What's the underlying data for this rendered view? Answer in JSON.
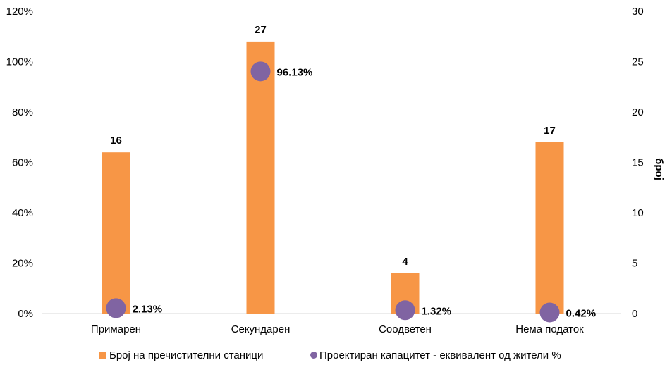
{
  "chart_data": {
    "type": "bar",
    "categories": [
      "Примарен",
      "Секундарен",
      "Соодветен",
      "Нема податок"
    ],
    "series": [
      {
        "name": "Број на пречистителни станици",
        "axis": "right",
        "kind": "bar",
        "color": "#F79646",
        "values": [
          16,
          27,
          4,
          17
        ],
        "labels": [
          "16",
          "27",
          "4",
          "17"
        ]
      },
      {
        "name": "Проектиран капацитет  - еквивалент од жители %",
        "axis": "left",
        "kind": "scatter",
        "color": "#8064A2",
        "values": [
          2.13,
          96.13,
          1.32,
          0.42
        ],
        "labels": [
          "2.13%",
          "96.13%",
          "1.32%",
          "0.42%"
        ]
      }
    ],
    "left_axis": {
      "ylim": [
        0,
        120
      ],
      "ticks": [
        "0%",
        "20%",
        "40%",
        "60%",
        "80%",
        "100%",
        "120%"
      ],
      "tick_values": [
        0,
        20,
        40,
        60,
        80,
        100,
        120
      ]
    },
    "right_axis": {
      "ylim": [
        0,
        30
      ],
      "label": "број",
      "ticks": [
        "0",
        "5",
        "10",
        "15",
        "20",
        "25",
        "30"
      ],
      "tick_values": [
        0,
        5,
        10,
        15,
        20,
        25,
        30
      ]
    },
    "grid": false,
    "legend_position": "bottom"
  }
}
